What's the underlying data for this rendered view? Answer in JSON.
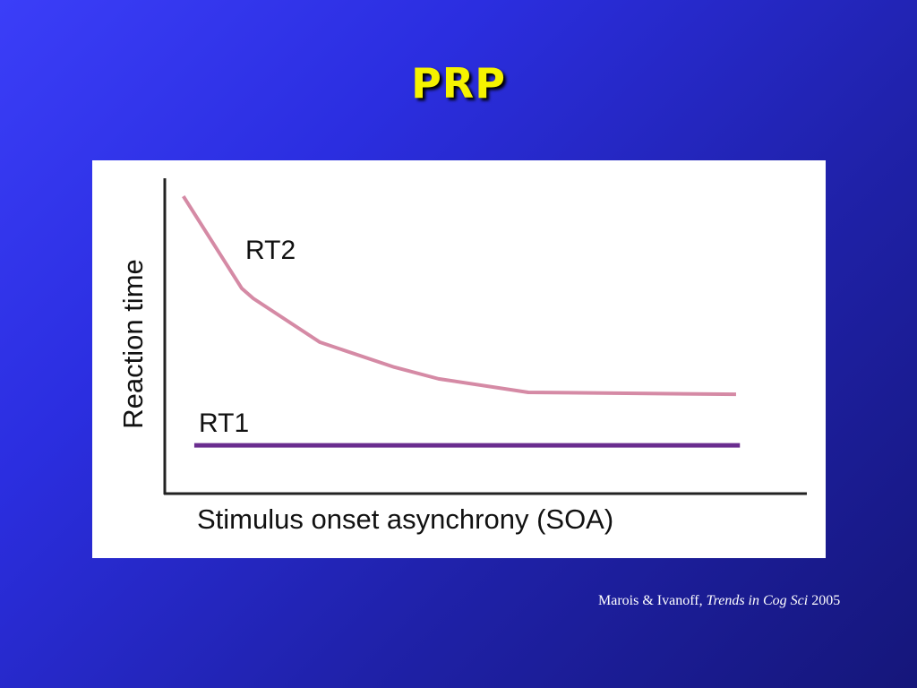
{
  "slide": {
    "title": "PRP",
    "citation": {
      "authors": "Marois & Ivanoff, ",
      "journal": "Trends in Cog Sci",
      "year": " 2005"
    }
  },
  "colors": {
    "title": "#f5f200",
    "rt2": "#d58aa5",
    "rt1": "#6a2d8f"
  },
  "chart_data": {
    "type": "line",
    "title": "",
    "xlabel": "Stimulus onset asynchrony (SOA)",
    "ylabel": "Reaction time",
    "xlim": [
      0,
      100
    ],
    "ylim": [
      0,
      100
    ],
    "grid": false,
    "units": "arbitrary (schematic, no ticks)",
    "series": [
      {
        "name": "RT2",
        "x": [
          2.9,
          12.0,
          13.8,
          24.2,
          35.8,
          42.7,
          56.7,
          89.1
        ],
        "y": [
          94.3,
          65.1,
          61.9,
          48.0,
          40.1,
          36.4,
          32.1,
          31.5
        ]
      },
      {
        "name": "RT1",
        "x": [
          4.6,
          89.7
        ],
        "y": [
          15.3,
          15.3
        ]
      }
    ]
  }
}
